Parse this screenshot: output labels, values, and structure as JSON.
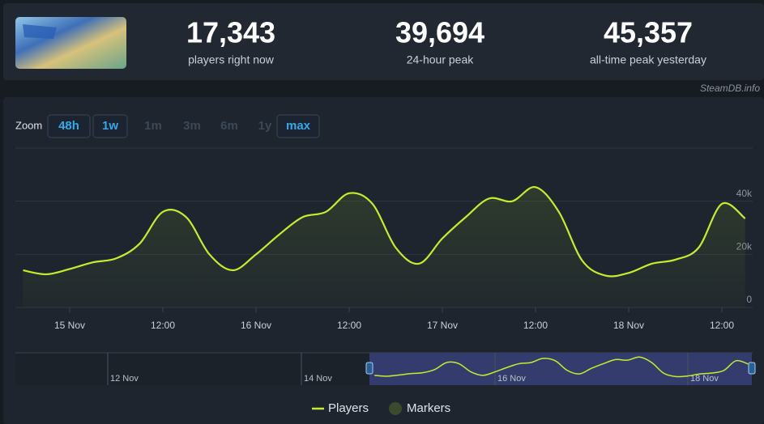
{
  "header": {
    "stats": [
      {
        "value": "17,343",
        "label": "players right now"
      },
      {
        "value": "39,694",
        "label": "24-hour peak"
      },
      {
        "value": "45,357",
        "label": "all-time peak yesterday"
      }
    ],
    "watermark": "SteamDB.info"
  },
  "zoom": {
    "label": "Zoom",
    "options": [
      {
        "label": "48h",
        "enabled": true
      },
      {
        "label": "1w",
        "enabled": true
      },
      {
        "label": "1m",
        "enabled": false
      },
      {
        "label": "3m",
        "enabled": false
      },
      {
        "label": "6m",
        "enabled": false
      },
      {
        "label": "1y",
        "enabled": false
      },
      {
        "label": "max",
        "enabled": true
      }
    ]
  },
  "chart_data": {
    "type": "line",
    "categories": [
      null,
      null,
      "15 Nov",
      null,
      null,
      null,
      "12:00",
      null,
      null,
      null,
      "16 Nov",
      null,
      null,
      null,
      "12:00",
      null,
      null,
      null,
      "17 Nov",
      null,
      null,
      null,
      "12:00",
      null,
      null,
      null,
      "18 Nov",
      null,
      null,
      null,
      "12:00",
      null
    ],
    "series": [
      {
        "name": "Players",
        "color": "#c4ee2c",
        "values": [
          14000,
          12500,
          14500,
          17000,
          18500,
          24000,
          36000,
          34000,
          20000,
          14000,
          20000,
          27500,
          34000,
          36000,
          43000,
          39000,
          22500,
          16500,
          26000,
          34000,
          41000,
          40000,
          45300,
          36000,
          17700,
          12000,
          13000,
          16500,
          18000,
          22500,
          39000,
          33500
        ]
      }
    ],
    "markers": {
      "name": "Markers",
      "color": "#3b4a2c"
    },
    "ylim": [
      0,
      60000
    ],
    "yticks": [
      {
        "value": 0,
        "label": "0"
      },
      {
        "value": 20000,
        "label": "20k"
      },
      {
        "value": 40000,
        "label": "40k"
      }
    ],
    "grid": true,
    "navigator": {
      "ticks": [
        "12 Nov",
        "14 Nov",
        "16 Nov",
        "18 Nov"
      ]
    }
  }
}
